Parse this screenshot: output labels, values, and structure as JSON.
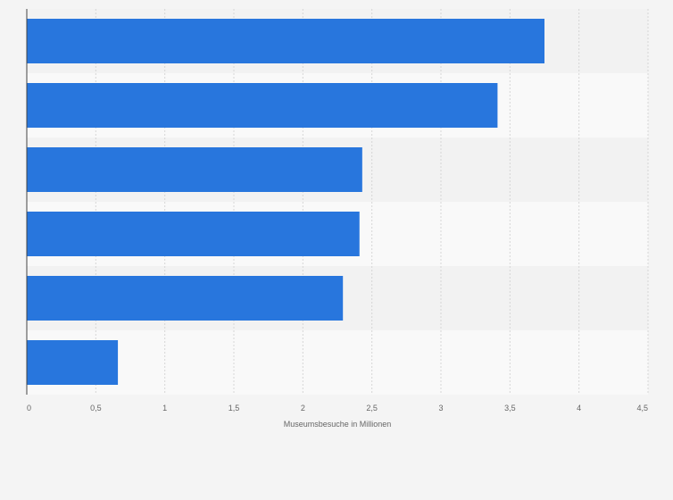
{
  "chart_data": {
    "type": "bar",
    "orientation": "horizontal",
    "categories": [
      "",
      "",
      "",
      "",
      "",
      ""
    ],
    "values": [
      3.75,
      3.41,
      2.43,
      2.41,
      2.29,
      0.66
    ],
    "xlabel": "Museumsbesuche in Millionen",
    "ylabel": "",
    "xlim": [
      0,
      4.5
    ],
    "xticks": [
      0,
      0.5,
      1,
      1.5,
      2,
      2.5,
      3,
      3.5,
      4,
      4.5
    ],
    "xtick_labels": [
      "0",
      "0,5",
      "1",
      "1,5",
      "2",
      "2,5",
      "3",
      "3,5",
      "4",
      "4,5"
    ],
    "grid": true,
    "bar_color": "#2876dd",
    "band_colors": [
      "#f2f2f2",
      "#f9f9f9"
    ]
  }
}
